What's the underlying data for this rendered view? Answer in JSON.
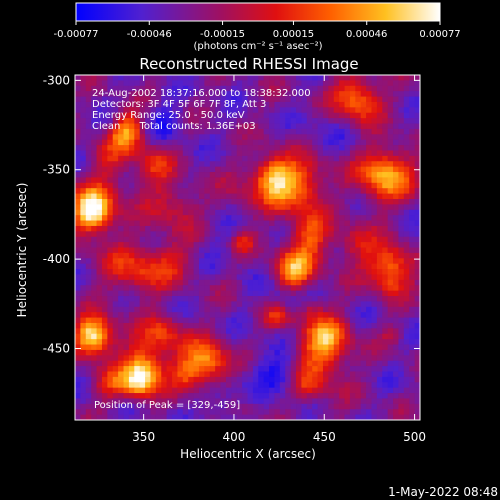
{
  "chart_data": {
    "type": "heatmap",
    "title": "Reconstructed RHESSI Image",
    "xlabel": "Heliocentric X (arcsec)",
    "ylabel": "Heliocentric Y (arcsec)",
    "xlim": [
      312,
      503
    ],
    "ylim": [
      -490,
      -297
    ],
    "x_ticks": [
      "350",
      "400",
      "450",
      "500"
    ],
    "x_tick_values": [
      350,
      400,
      450,
      500
    ],
    "y_ticks": [
      "-300",
      "-350",
      "-400",
      "-450"
    ],
    "y_tick_values": [
      -300,
      -350,
      -400,
      -450
    ],
    "colorbar": {
      "ticks": [
        "-0.00077",
        "-0.00046",
        "-0.00015",
        "0.00015",
        "0.00046",
        "0.00077"
      ],
      "tick_values": [
        -0.00077,
        -0.00046,
        -0.00015,
        0.00015,
        0.00046,
        0.00077
      ],
      "range": [
        -0.00077,
        0.00077
      ],
      "unit_label": "(photons cm⁻² s⁻¹ asec⁻²)",
      "colors": [
        "#0000ff",
        "#7030c0",
        "#c00020",
        "#ff4000",
        "#ffa000",
        "#ffff60",
        "#ffffff"
      ]
    },
    "annotations": [
      "24-Aug-2002 18:37:16.000 to 18:38:32.000",
      "Detectors: 3F 4F 5F 6F 7F 8F, Att 3",
      "Energy Range: 25.0 - 50.0 keV",
      "Clean      Total counts: 1.36E+03"
    ],
    "peak_label": "Position of Peak = [329,-459]",
    "peak": [
      329,
      -459
    ],
    "footer_date": "1-May-2022 08:48"
  }
}
